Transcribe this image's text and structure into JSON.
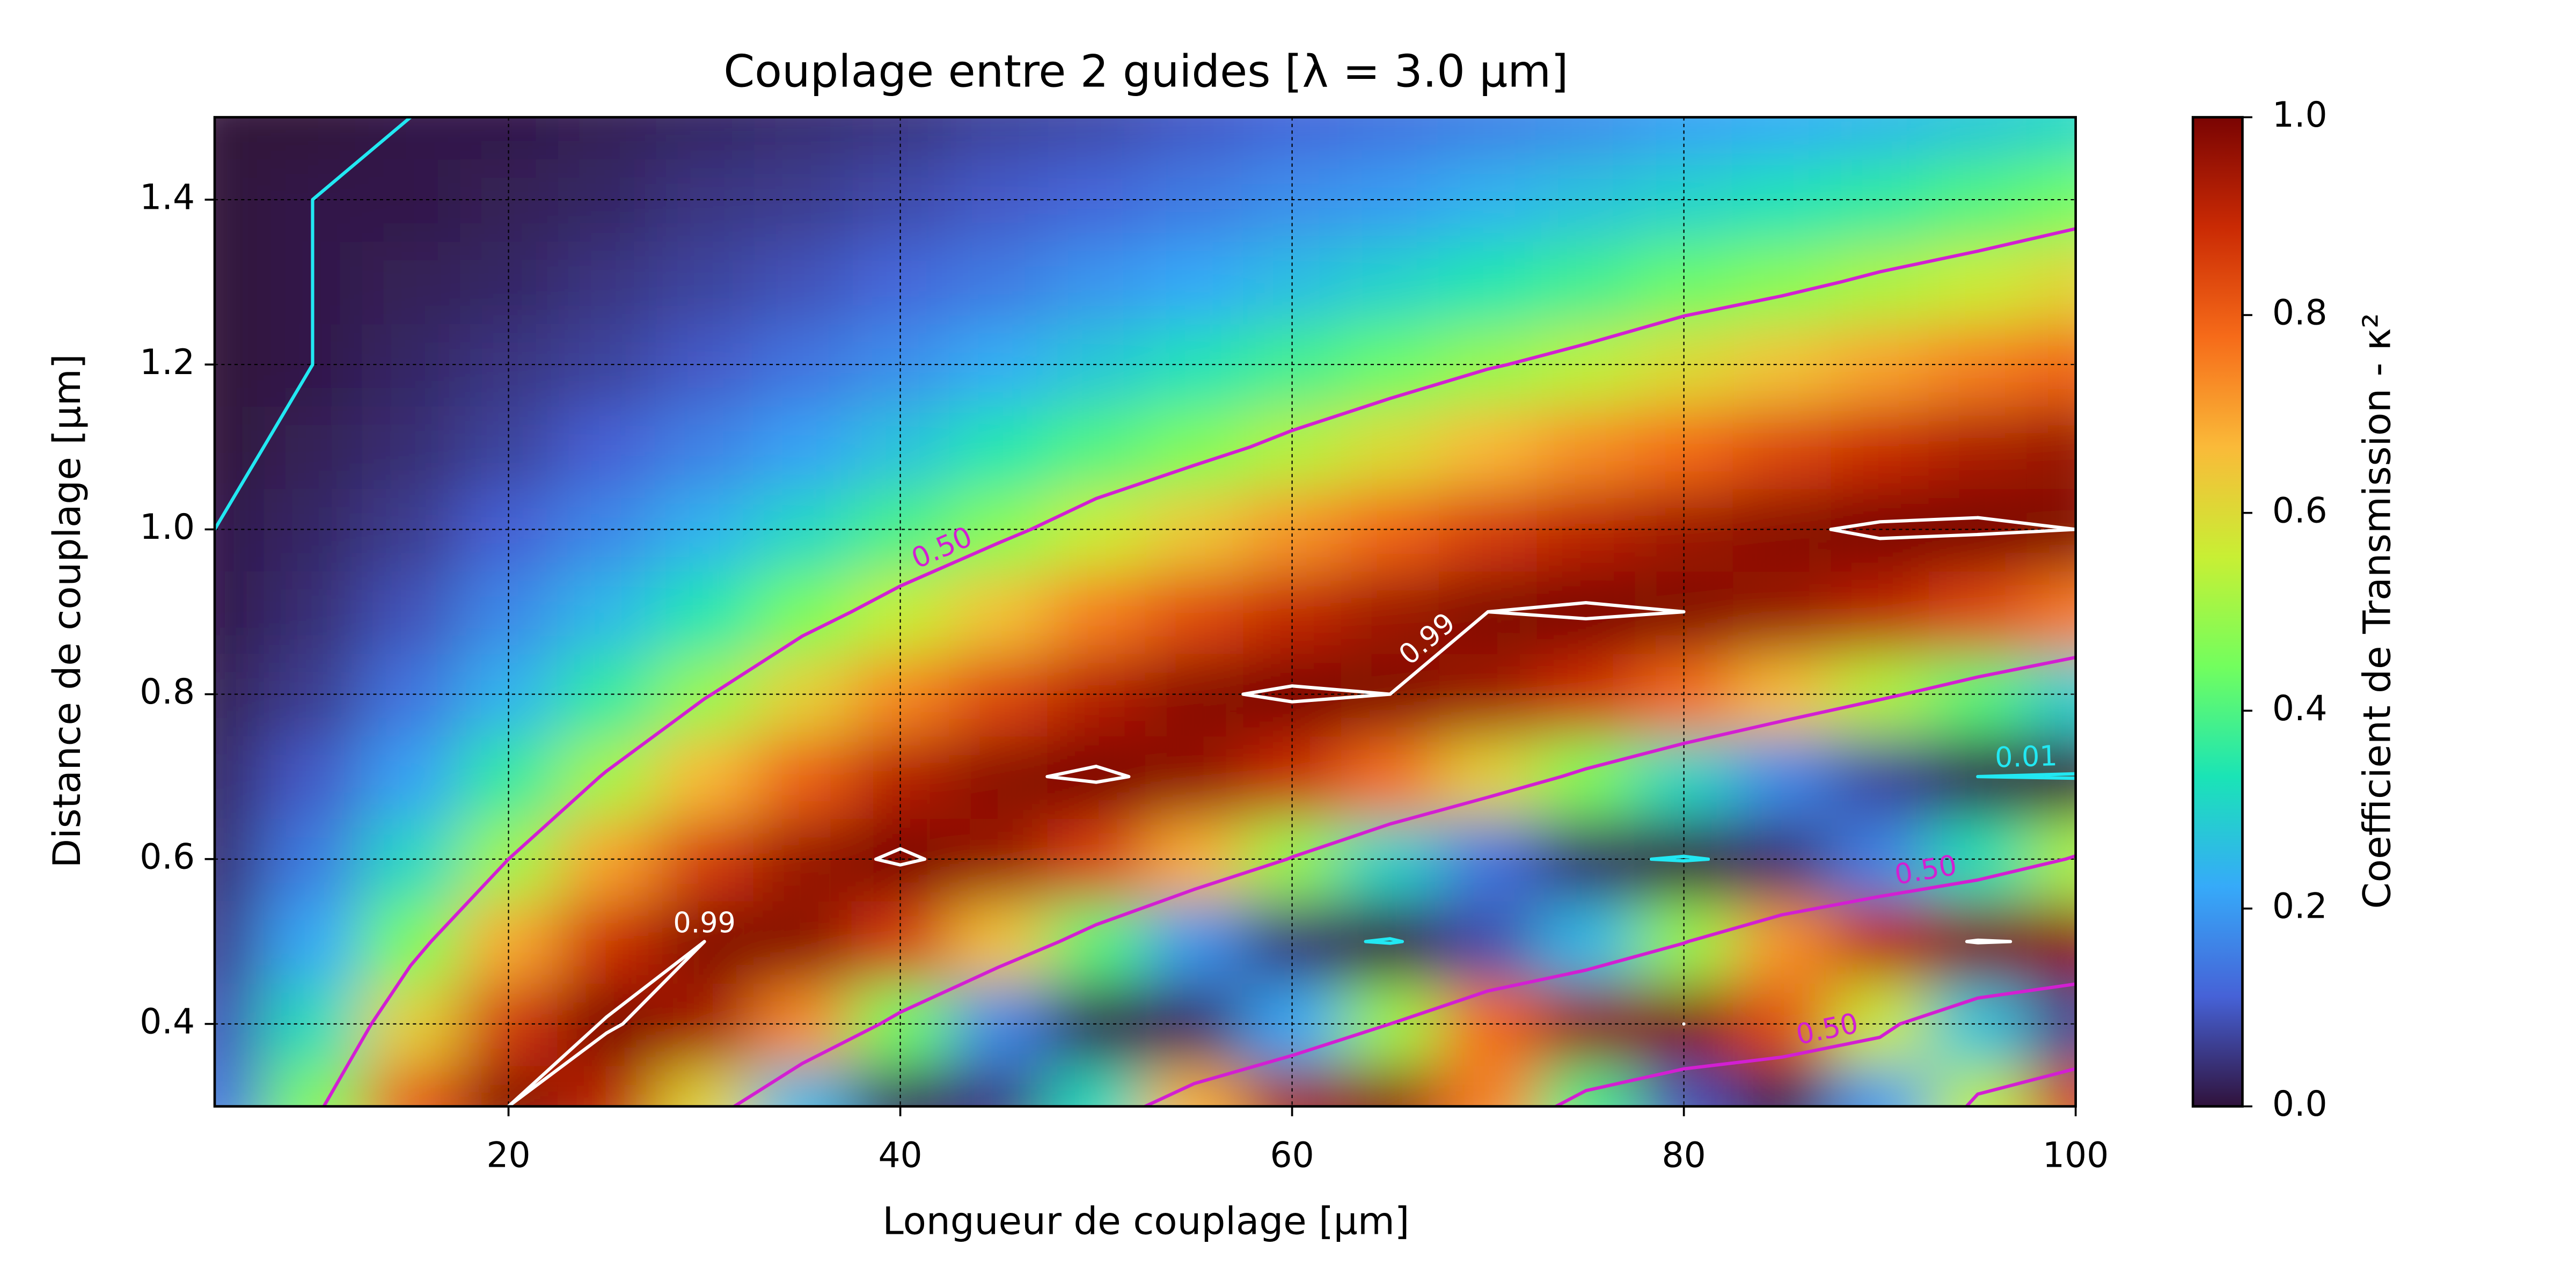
{
  "chart_data": {
    "type": "heatmap",
    "title": "Couplage entre 2 guides [λ = 3.0 μm]",
    "x_label": "Longueur de couplage [μm]",
    "y_label": "Distance de couplage [μm]",
    "xlim": [
      5,
      100
    ],
    "ylim": [
      0.3,
      1.5
    ],
    "xticks": [
      20,
      40,
      60,
      80,
      100
    ],
    "yticks": [
      0.4,
      0.6,
      0.8,
      {
        "value": 1.0,
        "label": "1.0"
      },
      1.2,
      1.4
    ],
    "grid": true,
    "x": [
      5,
      10,
      15,
      20,
      25,
      30,
      35,
      40,
      45,
      50,
      55,
      60,
      65,
      70,
      75,
      80,
      85,
      90,
      95,
      100
    ],
    "y": [
      0.3,
      0.4,
      0.5,
      0.6,
      0.7,
      0.8,
      0.9,
      1.0,
      1.1,
      1.2,
      1.3,
      1.4,
      1.5
    ],
    "z": [
      [
        0.13,
        0.46,
        0.81,
        0.99,
        0.91,
        0.61,
        0.25,
        0.02,
        0.05,
        0.32,
        0.68,
        0.95,
        0.98,
        0.75,
        0.39,
        0.09,
        0.01,
        0.19,
        0.54,
        0.87
      ],
      [
        0.09,
        0.32,
        0.62,
        0.87,
        1.0,
        0.94,
        0.73,
        0.44,
        0.17,
        0.01,
        0.03,
        0.22,
        0.5,
        0.78,
        0.97,
        0.99,
        0.83,
        0.56,
        0.27,
        0.06
      ],
      [
        0.06,
        0.22,
        0.45,
        0.69,
        0.88,
        0.99,
        0.98,
        0.86,
        0.65,
        0.41,
        0.19,
        0.04,
        0.0,
        0.08,
        0.25,
        0.49,
        0.72,
        0.91,
        1.0,
        0.97
      ],
      [
        0.04,
        0.15,
        0.31,
        0.5,
        0.7,
        0.86,
        0.96,
        1.0,
        0.96,
        0.85,
        0.68,
        0.49,
        0.3,
        0.14,
        0.03,
        0.0,
        0.04,
        0.16,
        0.33,
        0.52
      ],
      [
        0.03,
        0.1,
        0.21,
        0.36,
        0.51,
        0.67,
        0.8,
        0.92,
        0.98,
        1.0,
        0.97,
        0.89,
        0.77,
        0.62,
        0.46,
        0.31,
        0.17,
        0.07,
        0.01,
        0.0
      ],
      [
        0.02,
        0.06,
        0.14,
        0.24,
        0.36,
        0.49,
        0.62,
        0.74,
        0.84,
        0.92,
        0.98,
        1.0,
        0.99,
        0.95,
        0.88,
        0.78,
        0.66,
        0.53,
        0.41,
        0.29
      ],
      [
        0.01,
        0.04,
        0.09,
        0.17,
        0.25,
        0.34,
        0.45,
        0.55,
        0.65,
        0.75,
        0.83,
        0.9,
        0.95,
        0.99,
        1.0,
        0.99,
        0.96,
        0.91,
        0.84,
        0.76
      ],
      [
        0.01,
        0.03,
        0.06,
        0.11,
        0.17,
        0.24,
        0.31,
        0.39,
        0.47,
        0.56,
        0.64,
        0.72,
        0.79,
        0.86,
        0.91,
        0.95,
        0.98,
        1.0,
        1.0,
        0.99
      ],
      [
        0.0,
        0.02,
        0.04,
        0.07,
        0.11,
        0.16,
        0.21,
        0.27,
        0.34,
        0.4,
        0.46,
        0.53,
        0.6,
        0.67,
        0.73,
        0.78,
        0.84,
        0.89,
        0.93,
        0.96
      ],
      [
        0.0,
        0.01,
        0.03,
        0.05,
        0.07,
        0.1,
        0.14,
        0.18,
        0.23,
        0.28,
        0.33,
        0.38,
        0.43,
        0.49,
        0.54,
        0.6,
        0.65,
        0.7,
        0.75,
        0.79
      ],
      [
        0.0,
        0.01,
        0.02,
        0.03,
        0.05,
        0.07,
        0.09,
        0.12,
        0.15,
        0.19,
        0.22,
        0.26,
        0.3,
        0.34,
        0.38,
        0.43,
        0.47,
        0.52,
        0.56,
        0.61
      ],
      [
        0.0,
        0.01,
        0.01,
        0.02,
        0.03,
        0.05,
        0.06,
        0.08,
        0.1,
        0.12,
        0.15,
        0.18,
        0.2,
        0.24,
        0.27,
        0.3,
        0.33,
        0.36,
        0.4,
        0.44
      ],
      [
        0.0,
        0.0,
        0.01,
        0.01,
        0.02,
        0.03,
        0.04,
        0.05,
        0.07,
        0.08,
        0.1,
        0.12,
        0.14,
        0.16,
        0.18,
        0.21,
        0.23,
        0.25,
        0.28,
        0.31
      ]
    ],
    "colormap": [
      "#30123b",
      "#4662d7",
      "#36aaf9",
      "#1ae4b6",
      "#72fe5e",
      "#c8ef34",
      "#faba39",
      "#f66b19",
      "#ca2a04",
      "#7a0403"
    ],
    "contours": [
      {
        "level": 0.01,
        "label": "0.01",
        "color": "#22e8f2"
      },
      {
        "level": 0.5,
        "label": "0.50",
        "color": "#d21fd2"
      },
      {
        "level": 0.99,
        "label": "0.99",
        "color": "#ffffff"
      }
    ],
    "colorbar": {
      "label": "Coefficient de Transmission - κ²",
      "lim": [
        0,
        1
      ],
      "ticks": [
        {
          "value": 0,
          "label": "0.0"
        },
        0.2,
        0.4,
        0.6,
        0.8,
        {
          "value": 1,
          "label": "1.0"
        }
      ]
    }
  }
}
